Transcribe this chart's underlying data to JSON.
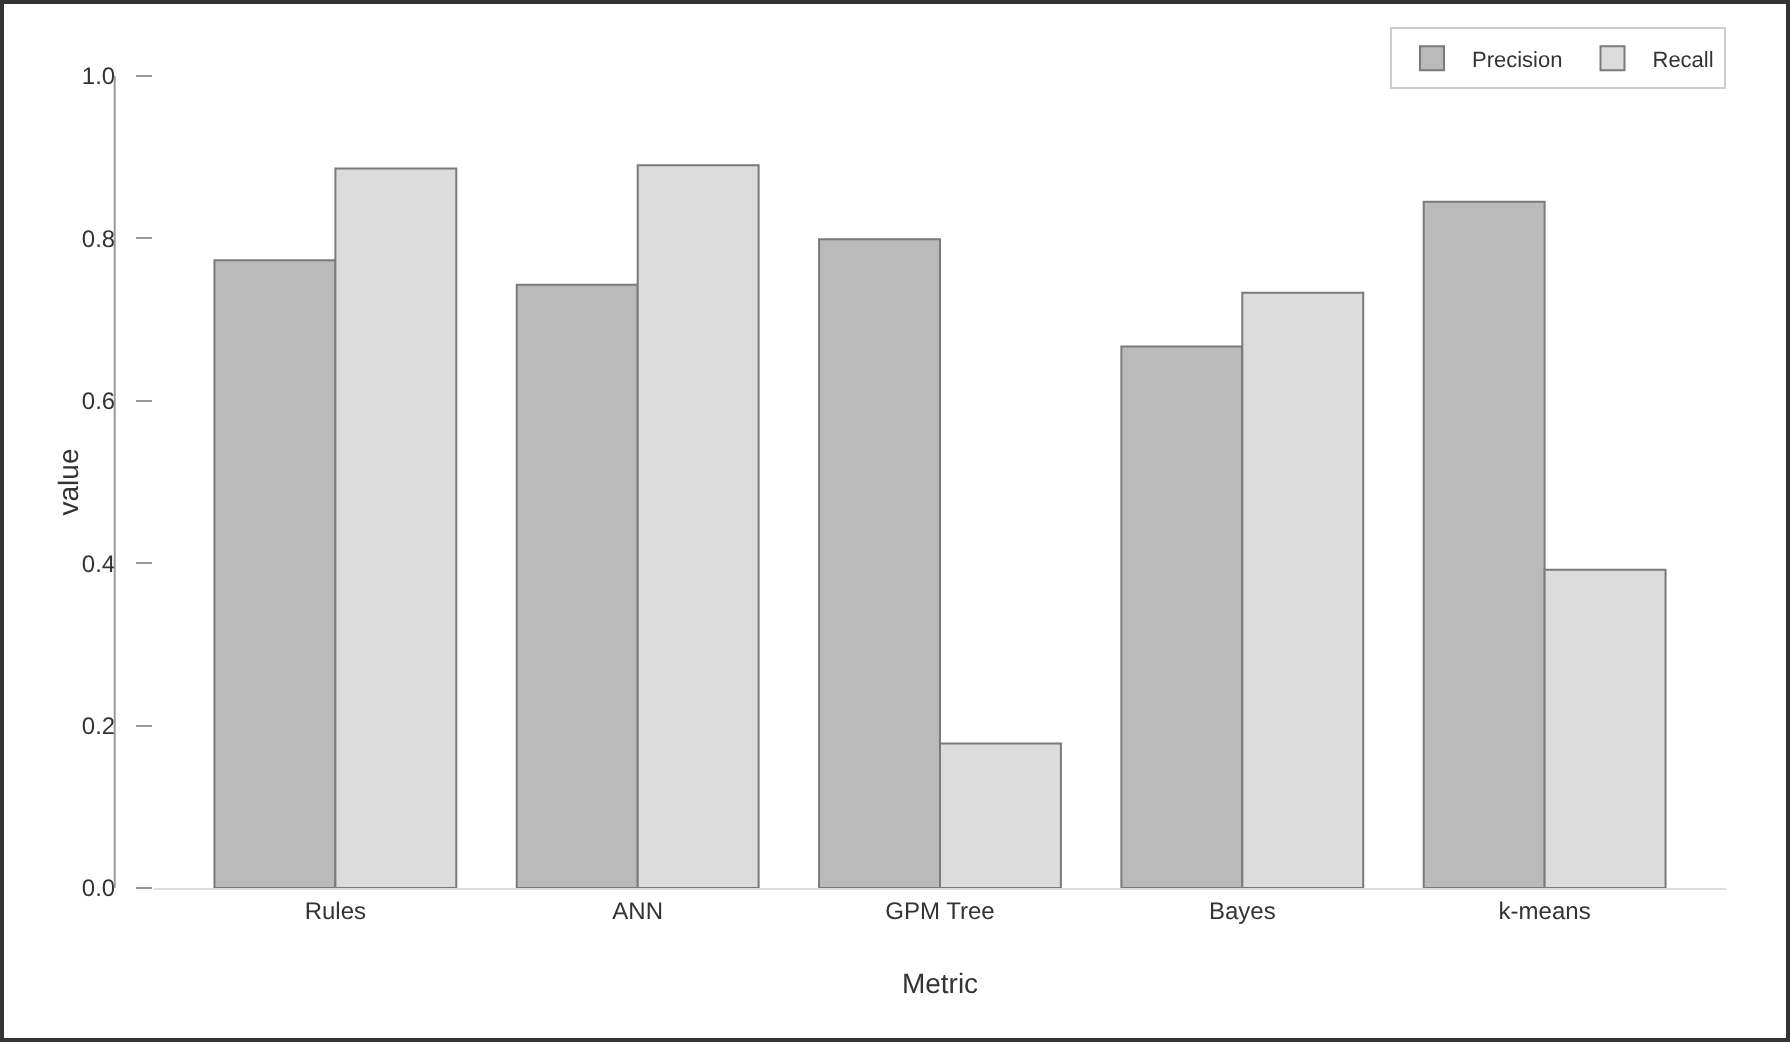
{
  "chart_data": {
    "type": "bar",
    "xlabel": "Metric",
    "ylabel": "value",
    "categories": [
      "Rules",
      "ANN",
      "GPM Tree",
      "Bayes",
      "k-means"
    ],
    "series": [
      {
        "name": "Precision",
        "color": "#bababa",
        "values": [
          0.773,
          0.743,
          0.799,
          0.667,
          0.845
        ]
      },
      {
        "name": "Recall",
        "color": "#dcdcdc",
        "values": [
          0.886,
          0.89,
          0.178,
          0.733,
          0.392
        ]
      }
    ],
    "ylim": [
      0,
      1
    ],
    "yticks": [
      {
        "value": 0,
        "label": "0.0"
      },
      0.2,
      0.4,
      0.6,
      0.8,
      {
        "value": 1,
        "label": "1.0"
      }
    ],
    "grid": false,
    "legend": "top right"
  }
}
